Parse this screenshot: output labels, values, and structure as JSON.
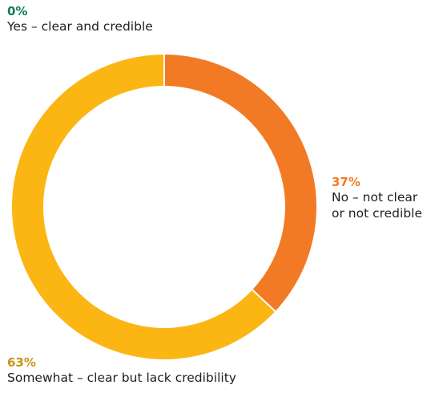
{
  "chart_data": {
    "type": "pie",
    "variant": "donut",
    "labels": [
      "Yes – clear and credible",
      "No – not clear\nor not credible",
      "Somewhat – clear but lack credibility"
    ],
    "values": [
      0,
      37,
      63
    ],
    "percent_labels": [
      "0%",
      "37%",
      "63%"
    ],
    "colors": [
      "#0f7d4f",
      "#f37a24",
      "#fbb614"
    ],
    "separator_color": "#ffffff"
  },
  "labels": {
    "yes": {
      "pct": "0%",
      "text": "Yes – clear and credible"
    },
    "no": {
      "pct": "37%",
      "line1": "No – not clear",
      "line2": "or not credible"
    },
    "somewhat": {
      "pct": "63%",
      "text": "Somewhat – clear but lack credibility"
    }
  }
}
